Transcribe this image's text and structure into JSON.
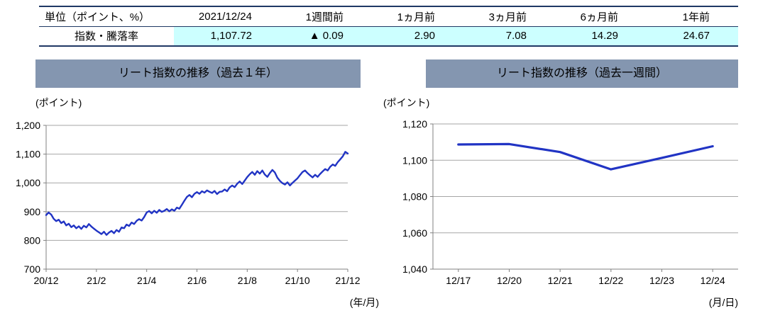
{
  "table": {
    "headers": [
      "単位（ポイント、%）",
      "2021/12/24",
      "1週間前",
      "1ヵ月前",
      "3ヵ月前",
      "6ヵ月前",
      "1年前"
    ],
    "row_label": "指数・騰落率",
    "values": [
      "1,107.72",
      "▲ 0.09",
      "2.90",
      "7.08",
      "14.29",
      "24.67"
    ]
  },
  "colors": {
    "line": "#2134C4",
    "grid": "#A6A6A6",
    "axis": "#808080",
    "title_bg": "#8496B0",
    "highlight": "#CCFFFF",
    "table_border": "#1F3864"
  },
  "chart_data": [
    {
      "type": "line",
      "title": "リート指数の推移（過去１年）",
      "ylabel": "(ポイント)",
      "xlabel": "(年/月)",
      "ylim": [
        700,
        1200
      ],
      "y_ticks": [
        700,
        800,
        900,
        1000,
        1100,
        1200
      ],
      "x_range": [
        0,
        12
      ],
      "x_tick_positions": [
        0,
        2,
        4,
        6,
        8,
        10,
        12
      ],
      "x_tick_labels": [
        "20/12",
        "21/2",
        "21/4",
        "21/6",
        "21/8",
        "21/10",
        "21/12"
      ],
      "x_start": 0,
      "x_step": 0.1,
      "grid": true,
      "legend": "none",
      "line_width": 2.4,
      "values": [
        888,
        897,
        890,
        875,
        867,
        872,
        860,
        866,
        852,
        858,
        846,
        852,
        842,
        849,
        840,
        851,
        845,
        857,
        848,
        841,
        834,
        828,
        822,
        830,
        819,
        827,
        833,
        825,
        836,
        830,
        845,
        842,
        855,
        850,
        862,
        857,
        868,
        874,
        869,
        881,
        897,
        902,
        894,
        903,
        896,
        906,
        899,
        903,
        909,
        901,
        908,
        903,
        914,
        910,
        924,
        938,
        951,
        958,
        950,
        962,
        968,
        962,
        971,
        966,
        974,
        969,
        965,
        972,
        961,
        969,
        970,
        977,
        971,
        984,
        991,
        985,
        997,
        1005,
        996,
        1008,
        1020,
        1030,
        1038,
        1028,
        1041,
        1032,
        1043,
        1029,
        1021,
        1034,
        1045,
        1036,
        1018,
        1007,
        999,
        994,
        1002,
        991,
        1000,
        1008,
        1016,
        1027,
        1038,
        1043,
        1034,
        1026,
        1019,
        1028,
        1021,
        1031,
        1040,
        1048,
        1043,
        1056,
        1064,
        1059,
        1072,
        1082,
        1092,
        1108,
        1102
      ]
    },
    {
      "type": "line",
      "title": "リート指数の推移（過去一週間）",
      "ylabel": "(ポイント)",
      "xlabel": "(月/日)",
      "ylim": [
        1040,
        1120
      ],
      "y_ticks": [
        1040,
        1060,
        1080,
        1100,
        1120
      ],
      "categories": [
        "12/17",
        "12/20",
        "12/21",
        "12/22",
        "12/23",
        "12/24"
      ],
      "values": [
        1108.7,
        1108.9,
        1104.5,
        1095.0,
        1101.3,
        1107.72
      ],
      "grid": true,
      "legend": "none",
      "line_width": 3.2
    }
  ]
}
